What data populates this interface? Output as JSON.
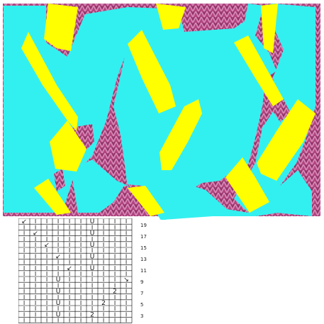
{
  "artwork": {
    "background_color": "#ffffff",
    "knit_texture_color": "#b0457f",
    "block_color": "#33f0f0",
    "stroke_color": "#ffff00"
  },
  "stitch_chart": {
    "grid_color": "#000000",
    "row_numbers": [
      "19",
      "17",
      "15",
      "13",
      "11",
      "9",
      "7",
      "5",
      "3"
    ],
    "symbols": {
      "knit": "I",
      "yarn_over": "U",
      "decrease_right": "↙",
      "decrease_left": "↘",
      "double_decrease": "2"
    }
  }
}
